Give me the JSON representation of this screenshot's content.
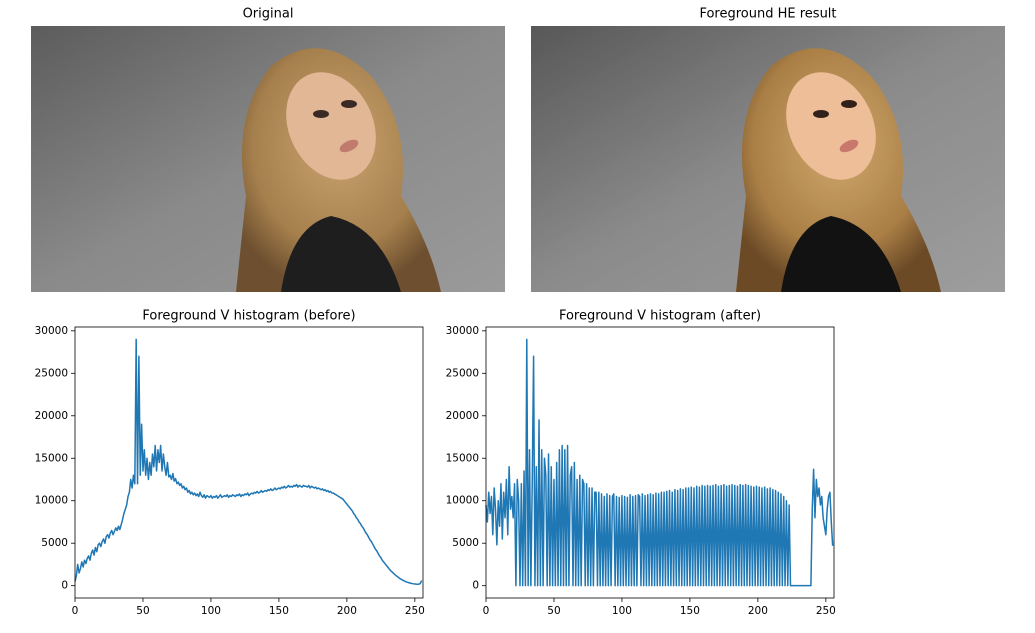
{
  "images": [
    {
      "title": "Original"
    },
    {
      "title": "Foreground HE result"
    }
  ],
  "chart_data": [
    {
      "type": "line",
      "title": "Foreground V histogram (before)",
      "color": "#1f77b4",
      "xlim": [
        0,
        256
      ],
      "xticks": [
        0,
        50,
        100,
        150,
        200,
        250
      ],
      "ylim": [
        -1450,
        30450
      ],
      "yticks": [
        0,
        5000,
        10000,
        15000,
        20000,
        25000,
        30000
      ],
      "values": [
        500,
        1200,
        2500,
        1500,
        2000,
        2800,
        2200,
        3000,
        2600,
        3200,
        3500,
        3000,
        3800,
        4200,
        3600,
        4500,
        4000,
        4800,
        5000,
        4600,
        5200,
        5500,
        5000,
        5800,
        6000,
        5600,
        6200,
        6500,
        6000,
        6400,
        6800,
        6500,
        7000,
        6600,
        7200,
        7800,
        8500,
        9000,
        9500,
        10500,
        11000,
        12500,
        11500,
        13000,
        12000,
        29000,
        12000,
        27000,
        13000,
        19000,
        13500,
        16000,
        13000,
        15000,
        12500,
        14500,
        13000,
        15500,
        14000,
        16500,
        13500,
        16000,
        14500,
        16500,
        13500,
        15500,
        14000,
        13000,
        14500,
        12800,
        13000,
        12500,
        13200,
        12300,
        12600,
        12000,
        12200,
        11800,
        12000,
        11500,
        11700,
        11300,
        11500,
        11000,
        11200,
        10800,
        11000,
        10700,
        10900,
        10600,
        10800,
        10500,
        11000,
        10600,
        10400,
        10700,
        10300,
        10600,
        10500,
        10400,
        10600,
        10300,
        10500,
        10400,
        10600,
        10300,
        10500,
        10700,
        10400,
        10500,
        10600,
        10500,
        10700,
        10400,
        10600,
        10500,
        10700,
        10600,
        10500,
        10700,
        10600,
        10800,
        10500,
        10700,
        10600,
        10800,
        10700,
        10900,
        10600,
        10800,
        10900,
        10800,
        11000,
        10900,
        11100,
        10900,
        11000,
        11200,
        11000,
        11100,
        11200,
        11100,
        11300,
        11200,
        11400,
        11200,
        11300,
        11500,
        11300,
        11400,
        11500,
        11400,
        11600,
        11500,
        11700,
        11500,
        11600,
        11800,
        11600,
        11700,
        11600,
        11800,
        11700,
        11900,
        11600,
        11800,
        11700,
        11600,
        11800,
        11700,
        11700,
        11600,
        11800,
        11500,
        11700,
        11600,
        11500,
        11600,
        11400,
        11500,
        11400,
        11300,
        11400,
        11200,
        11300,
        11100,
        11200,
        11000,
        11100,
        10900,
        10900,
        10800,
        10700,
        10600,
        10500,
        10400,
        10300,
        10200,
        10000,
        9800,
        9600,
        9400,
        9200,
        9000,
        8800,
        8500,
        8300,
        8000,
        7800,
        7500,
        7300,
        7000,
        6800,
        6500,
        6200,
        6000,
        5700,
        5400,
        5200,
        4900,
        4600,
        4300,
        4100,
        3800,
        3500,
        3300,
        3000,
        2800,
        2600,
        2400,
        2200,
        2000,
        1800,
        1650,
        1500,
        1350,
        1200,
        1100,
        950,
        850,
        750,
        650,
        580,
        500,
        430,
        380,
        330,
        290,
        250,
        220,
        200,
        180,
        170,
        180,
        250,
        600
      ]
    },
    {
      "type": "line",
      "title": "Foreground V histogram (after)",
      "color": "#1f77b4",
      "xlim": [
        0,
        256
      ],
      "xticks": [
        0,
        50,
        100,
        150,
        200,
        250
      ],
      "ylim": [
        -1450,
        30450
      ],
      "yticks": [
        0,
        5000,
        10000,
        15000,
        20000,
        25000,
        30000
      ],
      "values": [
        9500,
        7500,
        11000,
        8500,
        10500,
        6000,
        11500,
        9000,
        4800,
        10000,
        7000,
        12000,
        5500,
        11000,
        8000,
        12500,
        6000,
        14000,
        9000,
        10500,
        8000,
        12000,
        0,
        12500,
        10000,
        0,
        12000,
        0,
        13500,
        0,
        29000,
        0,
        16000,
        0,
        12000,
        27000,
        0,
        14000,
        0,
        19500,
        0,
        16000,
        0,
        15000,
        13000,
        0,
        15500,
        0,
        14000,
        0,
        12500,
        0,
        14500,
        0,
        16000,
        0,
        16500,
        0,
        16000,
        0,
        16500,
        0,
        13000,
        14000,
        0,
        14500,
        0,
        12500,
        0,
        13000,
        0,
        12500,
        12000,
        0,
        12000,
        0,
        11500,
        0,
        11500,
        0,
        11000,
        11000,
        0,
        11000,
        0,
        10800,
        0,
        10500,
        0,
        10800,
        0,
        10600,
        0,
        10500,
        10800,
        0,
        10500,
        0,
        10400,
        0,
        10600,
        0,
        10500,
        0,
        10400,
        0,
        10700,
        0,
        10500,
        0,
        10600,
        0,
        10700,
        10500,
        0,
        10800,
        0,
        10600,
        0,
        10700,
        0,
        10800,
        0,
        10700,
        0,
        10900,
        0,
        10800,
        0,
        11000,
        0,
        11000,
        0,
        11100,
        0,
        11200,
        0,
        11000,
        0,
        11300,
        0,
        11200,
        0,
        11400,
        0,
        11300,
        0,
        11500,
        0,
        11500,
        0,
        11600,
        0,
        11500,
        0,
        11700,
        0,
        11600,
        0,
        11800,
        0,
        11700,
        0,
        11800,
        0,
        11700,
        0,
        11800,
        0,
        11900,
        0,
        11700,
        0,
        11800,
        0,
        11900,
        0,
        11700,
        0,
        11800,
        0,
        11900,
        0,
        11800,
        0,
        11700,
        0,
        11900,
        0,
        11800,
        0,
        11900,
        0,
        11800,
        0,
        11700,
        0,
        11600,
        0,
        11700,
        0,
        11600,
        0,
        11500,
        0,
        11600,
        0,
        11400,
        0,
        11500,
        0,
        11300,
        0,
        11200,
        0,
        11000,
        0,
        10800,
        0,
        10500,
        0,
        10000,
        0,
        9500,
        0,
        0,
        0,
        0,
        0,
        0,
        0,
        0,
        0,
        0,
        0,
        0,
        0,
        0,
        0,
        0,
        9000,
        13700,
        8000,
        12500,
        10500,
        11500,
        9500,
        10500,
        8000,
        7000,
        6000,
        9000,
        10500,
        11000,
        7500,
        4700
      ]
    }
  ]
}
